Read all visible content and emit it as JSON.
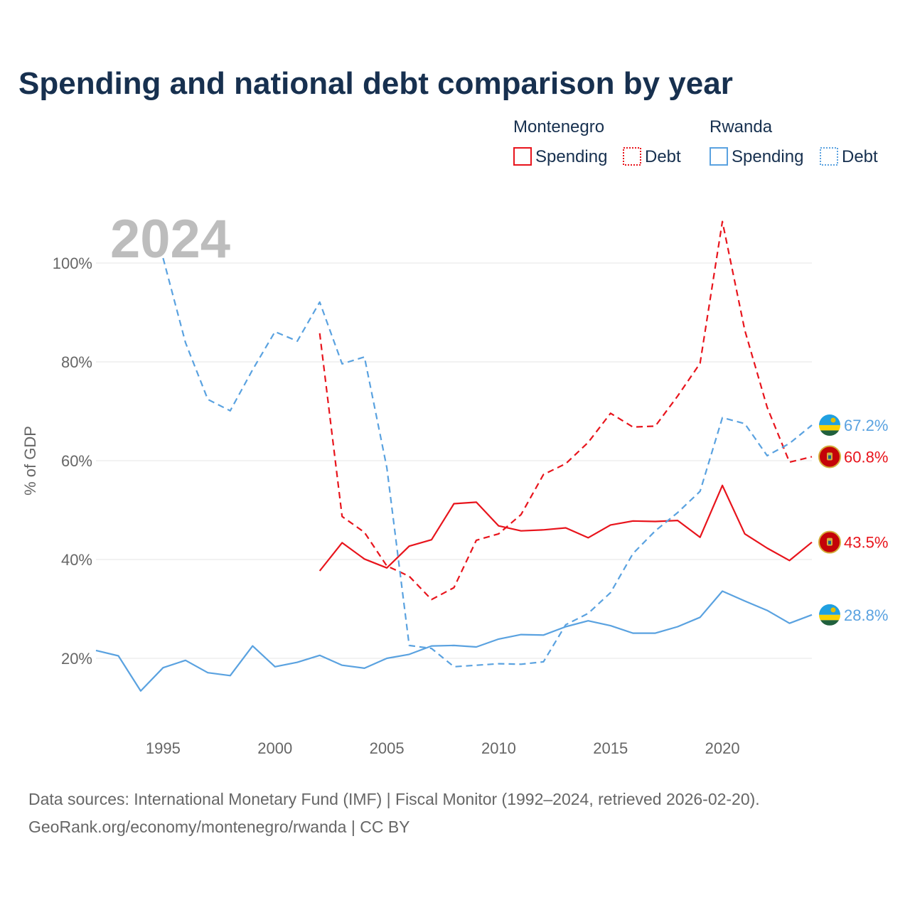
{
  "title": "Spending and national debt comparison by year",
  "colors": {
    "montenegro": "#e8141c",
    "rwanda": "#5aa2e0"
  },
  "legend": {
    "montenegro": {
      "name": "Montenegro",
      "spending": "Spending",
      "debt": "Debt"
    },
    "rwanda": {
      "name": "Rwanda",
      "spending": "Spending",
      "debt": "Debt"
    }
  },
  "year_watermark": "2024",
  "chart_data": {
    "type": "line",
    "ylabel": "% of GDP",
    "xlim": [
      1992,
      2024
    ],
    "ylim": [
      12,
      110
    ],
    "x_ticks": [
      1995,
      2000,
      2005,
      2010,
      2015,
      2020
    ],
    "y_ticks": [
      20,
      40,
      60,
      80,
      100
    ],
    "y_tick_labels": [
      "20%",
      "40%",
      "60%",
      "80%",
      "100%"
    ],
    "series": [
      {
        "name": "Montenegro Spending",
        "country": "montenegro",
        "style": "solid",
        "end_label": "43.5%",
        "x": [
          2002,
          2003,
          2004,
          2005,
          2006,
          2007,
          2008,
          2009,
          2010,
          2011,
          2012,
          2013,
          2014,
          2015,
          2016,
          2017,
          2018,
          2019,
          2020,
          2021,
          2022,
          2023,
          2024
        ],
        "values": [
          37.7,
          43.4,
          40.1,
          38.3,
          42.7,
          44.0,
          51.3,
          51.6,
          46.8,
          45.8,
          46.0,
          46.4,
          44.4,
          47.0,
          47.8,
          47.7,
          47.9,
          44.5,
          55.0,
          45.2,
          42.3,
          39.8,
          43.5
        ]
      },
      {
        "name": "Montenegro Debt",
        "country": "montenegro",
        "style": "dashed",
        "end_label": "60.8%",
        "x": [
          2002,
          2003,
          2004,
          2005,
          2006,
          2007,
          2008,
          2009,
          2010,
          2011,
          2012,
          2013,
          2014,
          2015,
          2016,
          2017,
          2018,
          2019,
          2020,
          2021,
          2022,
          2023,
          2024
        ],
        "values": [
          85.8,
          48.7,
          45.5,
          38.7,
          36.6,
          31.9,
          34.3,
          43.9,
          45.2,
          49.1,
          57.2,
          59.4,
          63.7,
          69.6,
          66.8,
          67.0,
          73.1,
          79.7,
          108.4,
          86.4,
          70.8,
          59.7,
          60.8
        ]
      },
      {
        "name": "Rwanda Spending",
        "country": "rwanda",
        "style": "solid",
        "end_label": "28.8%",
        "x": [
          1992,
          1993,
          1994,
          1995,
          1996,
          1997,
          1998,
          1999,
          2000,
          2001,
          2002,
          2003,
          2004,
          2005,
          2006,
          2007,
          2008,
          2009,
          2010,
          2011,
          2012,
          2013,
          2014,
          2015,
          2016,
          2017,
          2018,
          2019,
          2020,
          2021,
          2022,
          2023,
          2024
        ],
        "values": [
          21.6,
          20.5,
          13.4,
          18.1,
          19.6,
          17.1,
          16.5,
          22.5,
          18.3,
          19.2,
          20.6,
          18.6,
          18.0,
          20.0,
          20.8,
          22.5,
          22.6,
          22.3,
          23.9,
          24.8,
          24.7,
          26.4,
          27.6,
          26.6,
          25.1,
          25.1,
          26.4,
          28.3,
          33.6,
          31.6,
          29.7,
          27.1,
          28.8
        ]
      },
      {
        "name": "Rwanda Debt",
        "country": "rwanda",
        "style": "dashed",
        "end_label": "67.2%",
        "x": [
          1995,
          1996,
          1997,
          1998,
          1999,
          2000,
          2001,
          2002,
          2003,
          2004,
          2005,
          2006,
          2007,
          2008,
          2009,
          2010,
          2011,
          2012,
          2013,
          2014,
          2015,
          2016,
          2017,
          2018,
          2019,
          2020,
          2021,
          2022,
          2023,
          2024
        ],
        "values": [
          101.0,
          83.9,
          72.4,
          70.1,
          78.4,
          86.1,
          84.2,
          92.1,
          79.6,
          81.0,
          58.6,
          22.6,
          22.0,
          18.3,
          18.6,
          18.9,
          18.8,
          19.3,
          26.8,
          29.1,
          33.3,
          41.2,
          45.8,
          49.5,
          53.8,
          68.7,
          67.5,
          61.0,
          63.5,
          67.2
        ]
      }
    ]
  },
  "source_line1": "Data sources: International Monetary Fund (IMF) | Fiscal Monitor (1992–2024, retrieved 2026-02-20).",
  "source_line2": "GeoRank.org/economy/montenegro/rwanda | CC BY",
  "flags": {
    "montenegro": "montenegro-flag-icon",
    "rwanda": "rwanda-flag-icon"
  }
}
